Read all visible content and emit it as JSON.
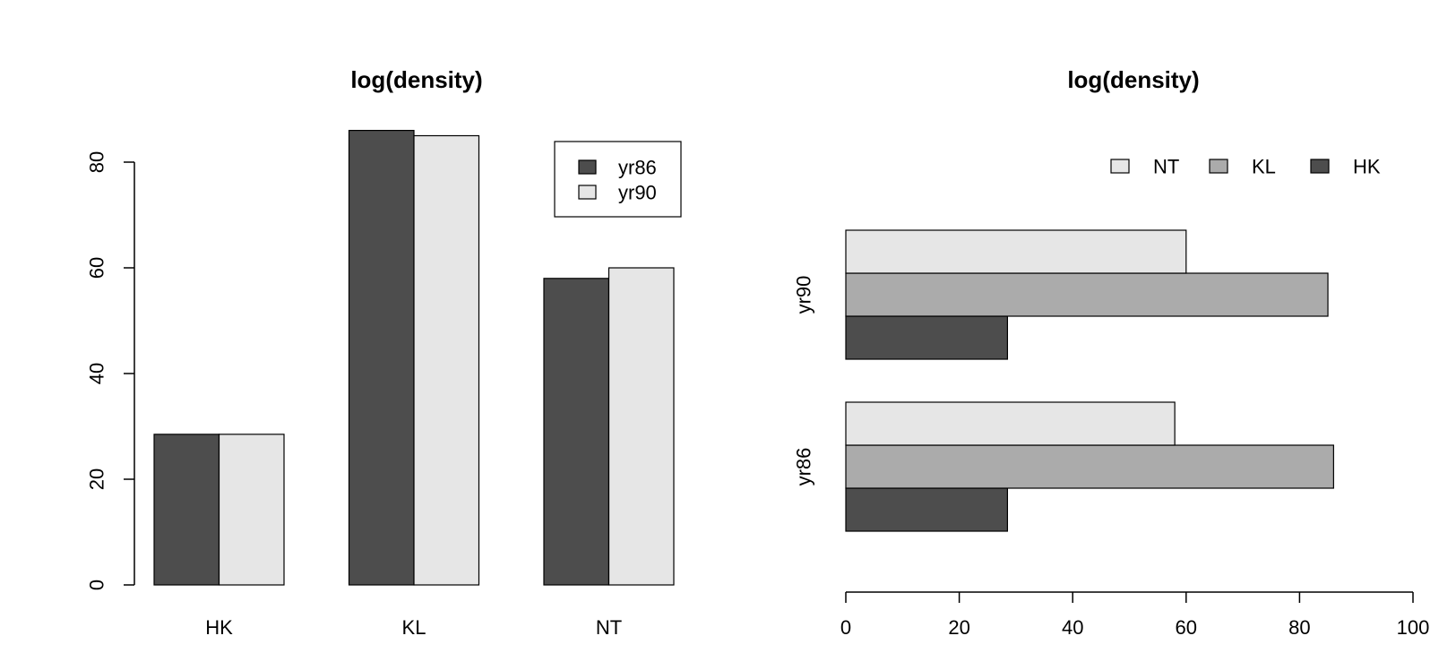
{
  "chart_data": [
    {
      "type": "bar",
      "orientation": "vertical",
      "grouping": "beside",
      "title": "log(density)",
      "categories": [
        "HK",
        "KL",
        "NT"
      ],
      "series": [
        {
          "name": "yr86",
          "values": [
            28.5,
            86,
            58
          ],
          "color": "#4d4d4d"
        },
        {
          "name": "yr90",
          "values": [
            28.5,
            85,
            60
          ],
          "color": "#e6e6e6"
        }
      ],
      "ylim": [
        0,
        86
      ],
      "yticks": [
        0,
        20,
        40,
        60,
        80
      ],
      "legend": {
        "position": "top-right",
        "boxed": true,
        "entries": [
          "yr86",
          "yr90"
        ]
      }
    },
    {
      "type": "bar",
      "orientation": "horizontal",
      "grouping": "beside",
      "title": "log(density)",
      "categories": [
        "yr86",
        "yr90"
      ],
      "series": [
        {
          "name": "HK",
          "values": [
            28.5,
            28.5
          ],
          "color": "#4d4d4d"
        },
        {
          "name": "KL",
          "values": [
            86,
            85
          ],
          "color": "#ababab"
        },
        {
          "name": "NT",
          "values": [
            58,
            60
          ],
          "color": "#e6e6e6"
        }
      ],
      "xlim": [
        0,
        100
      ],
      "xticks": [
        0,
        20,
        40,
        60,
        80,
        100
      ],
      "legend": {
        "position": "top",
        "boxed": false,
        "orientation": "horizontal",
        "entries": [
          "NT",
          "KL",
          "HK"
        ]
      }
    }
  ]
}
